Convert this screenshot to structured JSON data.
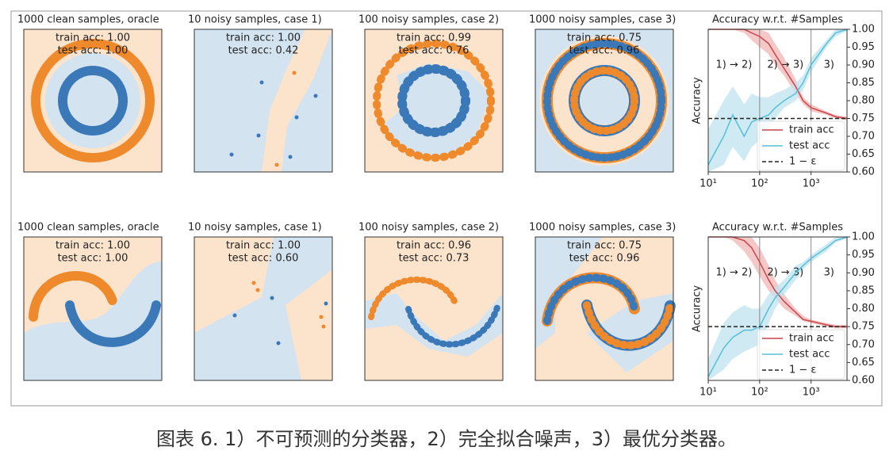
{
  "figure": {
    "panels": [
      {
        "title": "1000 clean samples, oracle",
        "train": "train acc: 1.00",
        "test": "test acc: 1.00"
      },
      {
        "title": "10 noisy samples, case 1)",
        "train": "train acc: 1.00",
        "test": "test acc: 0.42"
      },
      {
        "title": "100 noisy samples, case 2)",
        "train": "train acc: 0.99",
        "test": "test acc: 0.76"
      },
      {
        "title": "1000 noisy samples, case 3)",
        "train": "train acc: 0.75",
        "test": "test acc: 0.96"
      },
      {
        "title": "1000 clean samples, oracle",
        "train": "train acc: 1.00",
        "test": "test acc: 1.00"
      },
      {
        "title": "10 noisy samples, case 1)",
        "train": "train acc: 1.00",
        "test": "test acc: 0.60"
      },
      {
        "title": "100 noisy samples, case 2)",
        "train": "train acc: 0.96",
        "test": "test acc: 0.73"
      },
      {
        "title": "1000 noisy samples, case 3)",
        "train": "train acc: 0.75",
        "test": "test acc: 0.96"
      }
    ],
    "caption": "图表 6. 1）不可预测的分类器，2）完全拟合噪声，3）最优分类器。"
  },
  "chart_data": [
    {
      "type": "line",
      "title": "Accuracy w.r.t. #Samples",
      "y_label": "Accuracy",
      "log_x": true,
      "x": [
        10,
        20,
        30,
        50,
        70,
        100,
        150,
        200,
        300,
        500,
        700,
        1000,
        2000,
        3000,
        5000
      ],
      "series": [
        {
          "name": "train acc",
          "color": "#c9444b",
          "band_color": "#f2b5b5",
          "values": [
            1.0,
            1.0,
            1.0,
            1.0,
            0.99,
            0.98,
            0.96,
            0.93,
            0.89,
            0.84,
            0.8,
            0.78,
            0.765,
            0.755,
            0.75
          ],
          "lower": [
            1.0,
            1.0,
            1.0,
            0.99,
            0.97,
            0.95,
            0.93,
            0.9,
            0.87,
            0.82,
            0.79,
            0.77,
            0.76,
            0.75,
            0.745
          ],
          "upper": [
            1.0,
            1.0,
            1.0,
            1.0,
            1.0,
            1.0,
            0.99,
            0.96,
            0.92,
            0.86,
            0.81,
            0.79,
            0.77,
            0.76,
            0.755
          ]
        },
        {
          "name": "test acc",
          "color": "#55c0d8",
          "band_color": "#bfe3ef",
          "values": [
            0.62,
            0.7,
            0.76,
            0.7,
            0.74,
            0.75,
            0.76,
            0.78,
            0.8,
            0.82,
            0.85,
            0.9,
            0.96,
            0.99,
            1.0
          ],
          "lower": [
            0.6,
            0.62,
            0.67,
            0.63,
            0.67,
            0.69,
            0.72,
            0.75,
            0.78,
            0.8,
            0.83,
            0.88,
            0.95,
            0.98,
            0.995
          ],
          "upper": [
            0.72,
            0.8,
            0.84,
            0.79,
            0.82,
            0.81,
            0.81,
            0.82,
            0.83,
            0.85,
            0.87,
            0.92,
            0.97,
            1.0,
            1.0
          ]
        }
      ],
      "hline": {
        "name": "1 − ε",
        "value": 0.75,
        "color": "#222"
      },
      "vlines": [
        100,
        1000
      ],
      "regions": [
        "1) → 2)",
        "2) → 3)",
        "3)"
      ],
      "xlim": [
        10,
        5000
      ],
      "ylim": [
        0.6,
        1.0
      ],
      "xticks": [
        {
          "value": 10,
          "label": "10¹"
        },
        {
          "value": 100,
          "label": "10²"
        },
        {
          "value": 1000,
          "label": "10³"
        }
      ],
      "yticks": [
        {
          "value": 0.6,
          "label": "0.60"
        },
        {
          "value": 0.65,
          "label": "0.65"
        },
        {
          "value": 0.7,
          "label": "0.70"
        },
        {
          "value": 0.75,
          "label": "0.75"
        },
        {
          "value": 0.8,
          "label": "0.80"
        },
        {
          "value": 0.85,
          "label": "0.85"
        },
        {
          "value": 0.9,
          "label": "0.90"
        },
        {
          "value": 0.95,
          "label": "0.95"
        },
        {
          "value": 1.0,
          "label": "1.00"
        }
      ]
    },
    {
      "type": "line",
      "title": "Accuracy w.r.t. #Samples",
      "y_label": "Accuracy",
      "log_x": true,
      "x": [
        10,
        20,
        30,
        50,
        70,
        100,
        150,
        200,
        300,
        500,
        700,
        1000,
        2000,
        3000,
        5000
      ],
      "series": [
        {
          "name": "train acc",
          "color": "#c9444b",
          "band_color": "#f2b5b5",
          "values": [
            1.0,
            1.0,
            1.0,
            0.99,
            0.97,
            0.93,
            0.88,
            0.85,
            0.82,
            0.79,
            0.77,
            0.765,
            0.755,
            0.75,
            0.75
          ],
          "lower": [
            1.0,
            1.0,
            0.99,
            0.96,
            0.93,
            0.89,
            0.85,
            0.83,
            0.8,
            0.78,
            0.765,
            0.76,
            0.75,
            0.745,
            0.745
          ],
          "upper": [
            1.0,
            1.0,
            1.0,
            1.0,
            1.0,
            0.97,
            0.92,
            0.88,
            0.84,
            0.8,
            0.78,
            0.77,
            0.76,
            0.755,
            0.755
          ]
        },
        {
          "name": "test acc",
          "color": "#55c0d8",
          "band_color": "#bfe3ef",
          "values": [
            0.61,
            0.69,
            0.72,
            0.74,
            0.74,
            0.75,
            0.8,
            0.83,
            0.86,
            0.9,
            0.92,
            0.94,
            0.97,
            0.99,
            1.0
          ],
          "lower": [
            0.6,
            0.63,
            0.66,
            0.68,
            0.69,
            0.7,
            0.76,
            0.8,
            0.84,
            0.88,
            0.91,
            0.93,
            0.96,
            0.985,
            0.995
          ],
          "upper": [
            0.66,
            0.76,
            0.79,
            0.81,
            0.8,
            0.8,
            0.84,
            0.86,
            0.88,
            0.92,
            0.93,
            0.95,
            0.98,
            1.0,
            1.0
          ]
        }
      ],
      "hline": {
        "name": "1 − ε",
        "value": 0.75,
        "color": "#222"
      },
      "vlines": [
        100,
        1000
      ],
      "regions": [
        "1) → 2)",
        "2) → 3)",
        "3)"
      ],
      "xlim": [
        10,
        5000
      ],
      "ylim": [
        0.6,
        1.0
      ],
      "xticks": [
        {
          "value": 10,
          "label": "10¹"
        },
        {
          "value": 100,
          "label": "10²"
        },
        {
          "value": 1000,
          "label": "10³"
        }
      ],
      "yticks": [
        {
          "value": 0.6,
          "label": "0.60"
        },
        {
          "value": 0.65,
          "label": "0.65"
        },
        {
          "value": 0.7,
          "label": "0.70"
        },
        {
          "value": 0.75,
          "label": "0.75"
        },
        {
          "value": 0.8,
          "label": "0.80"
        },
        {
          "value": 0.85,
          "label": "0.85"
        },
        {
          "value": 0.9,
          "label": "0.90"
        },
        {
          "value": 0.95,
          "label": "0.95"
        },
        {
          "value": 1.0,
          "label": "1.00"
        }
      ]
    }
  ]
}
